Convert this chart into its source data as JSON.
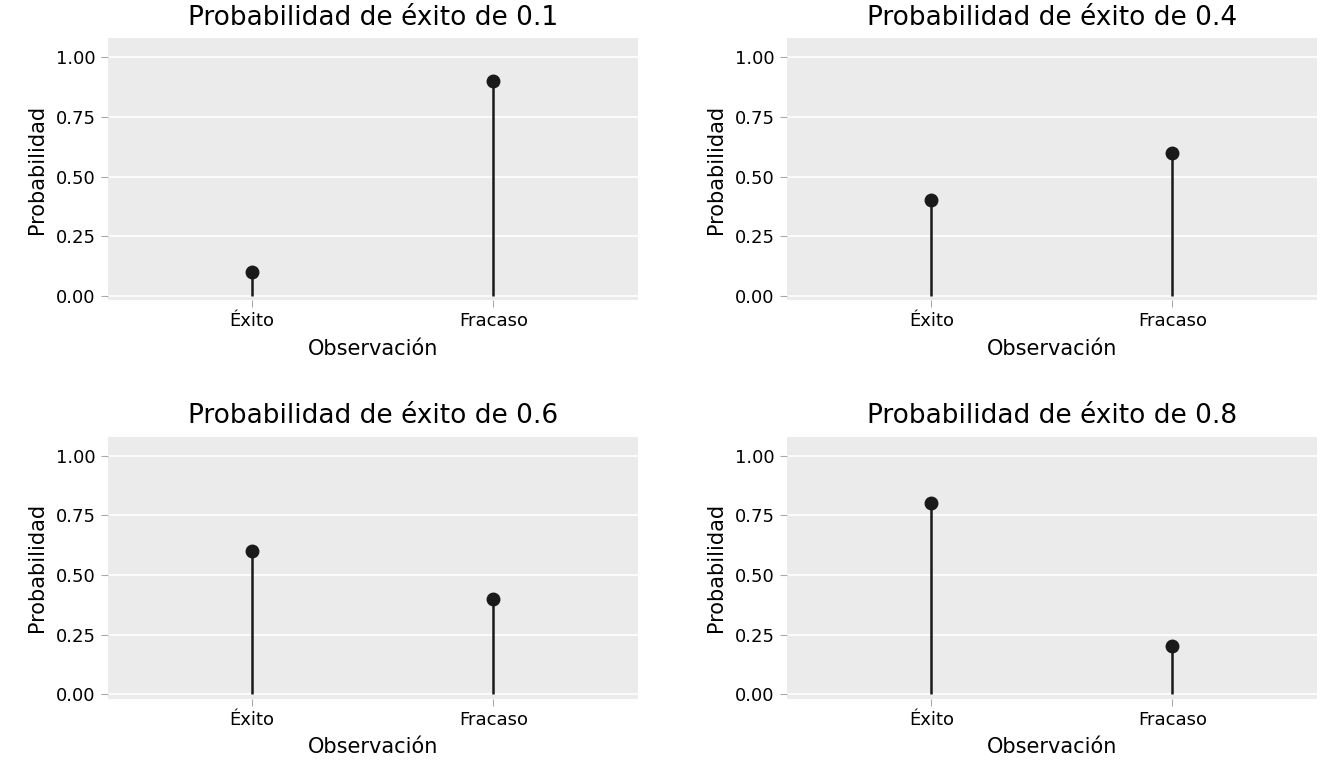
{
  "subplots": [
    {
      "title": "Probabilidad de éxito de 0.1",
      "categories": [
        "Éxito",
        "Fracaso"
      ],
      "values": [
        0.1,
        0.9
      ]
    },
    {
      "title": "Probabilidad de éxito de 0.4",
      "categories": [
        "Éxito",
        "Fracaso"
      ],
      "values": [
        0.4,
        0.6
      ]
    },
    {
      "title": "Probabilidad de éxito de 0.6",
      "categories": [
        "Éxito",
        "Fracaso"
      ],
      "values": [
        0.6,
        0.4
      ]
    },
    {
      "title": "Probabilidad de éxito de 0.8",
      "categories": [
        "Éxito",
        "Fracaso"
      ],
      "values": [
        0.8,
        0.2
      ]
    }
  ],
  "xlabel": "Observación",
  "ylabel": "Probabilidad",
  "ylim": [
    0.0,
    1.0
  ],
  "yticks": [
    0.0,
    0.25,
    0.5,
    0.75,
    1.0
  ],
  "ytick_labels": [
    "0.00",
    "0.25",
    "0.50",
    "0.75",
    "1.00"
  ],
  "bg_color": "#EBEBEB",
  "line_color": "#1a1a1a",
  "dot_color": "#1a1a1a",
  "title_fontsize": 19,
  "label_fontsize": 15,
  "tick_fontsize": 13,
  "markersize": 9,
  "linewidth": 1.8
}
